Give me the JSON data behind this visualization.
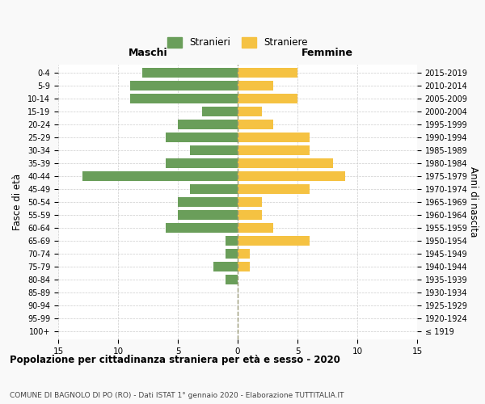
{
  "age_groups": [
    "100+",
    "95-99",
    "90-94",
    "85-89",
    "80-84",
    "75-79",
    "70-74",
    "65-69",
    "60-64",
    "55-59",
    "50-54",
    "45-49",
    "40-44",
    "35-39",
    "30-34",
    "25-29",
    "20-24",
    "15-19",
    "10-14",
    "5-9",
    "0-4"
  ],
  "birth_years": [
    "≤ 1919",
    "1920-1924",
    "1925-1929",
    "1930-1934",
    "1935-1939",
    "1940-1944",
    "1945-1949",
    "1950-1954",
    "1955-1959",
    "1960-1964",
    "1965-1969",
    "1970-1974",
    "1975-1979",
    "1980-1984",
    "1985-1989",
    "1990-1994",
    "1995-1999",
    "2000-2004",
    "2005-2009",
    "2010-2014",
    "2015-2019"
  ],
  "maschi": [
    0,
    0,
    0,
    0,
    1,
    2,
    1,
    1,
    6,
    5,
    5,
    4,
    13,
    6,
    4,
    6,
    5,
    3,
    9,
    9,
    8
  ],
  "femmine": [
    0,
    0,
    0,
    0,
    0,
    1,
    1,
    6,
    3,
    2,
    2,
    6,
    9,
    8,
    6,
    6,
    3,
    2,
    5,
    3,
    5
  ],
  "color_maschi": "#6a9e5a",
  "color_femmine": "#f5c242",
  "title": "Popolazione per cittadinanza straniera per età e sesso - 2020",
  "subtitle": "COMUNE DI BAGNOLO DI PO (RO) - Dati ISTAT 1° gennaio 2020 - Elaborazione TUTTITALIA.IT",
  "xlabel_left": "Maschi",
  "xlabel_right": "Femmine",
  "ylabel_left": "Fasce di età",
  "ylabel_right": "Anni di nascita",
  "legend_maschi": "Stranieri",
  "legend_femmine": "Straniere",
  "xlim": 15,
  "background_color": "#f9f9f9",
  "plot_background": "#ffffff"
}
